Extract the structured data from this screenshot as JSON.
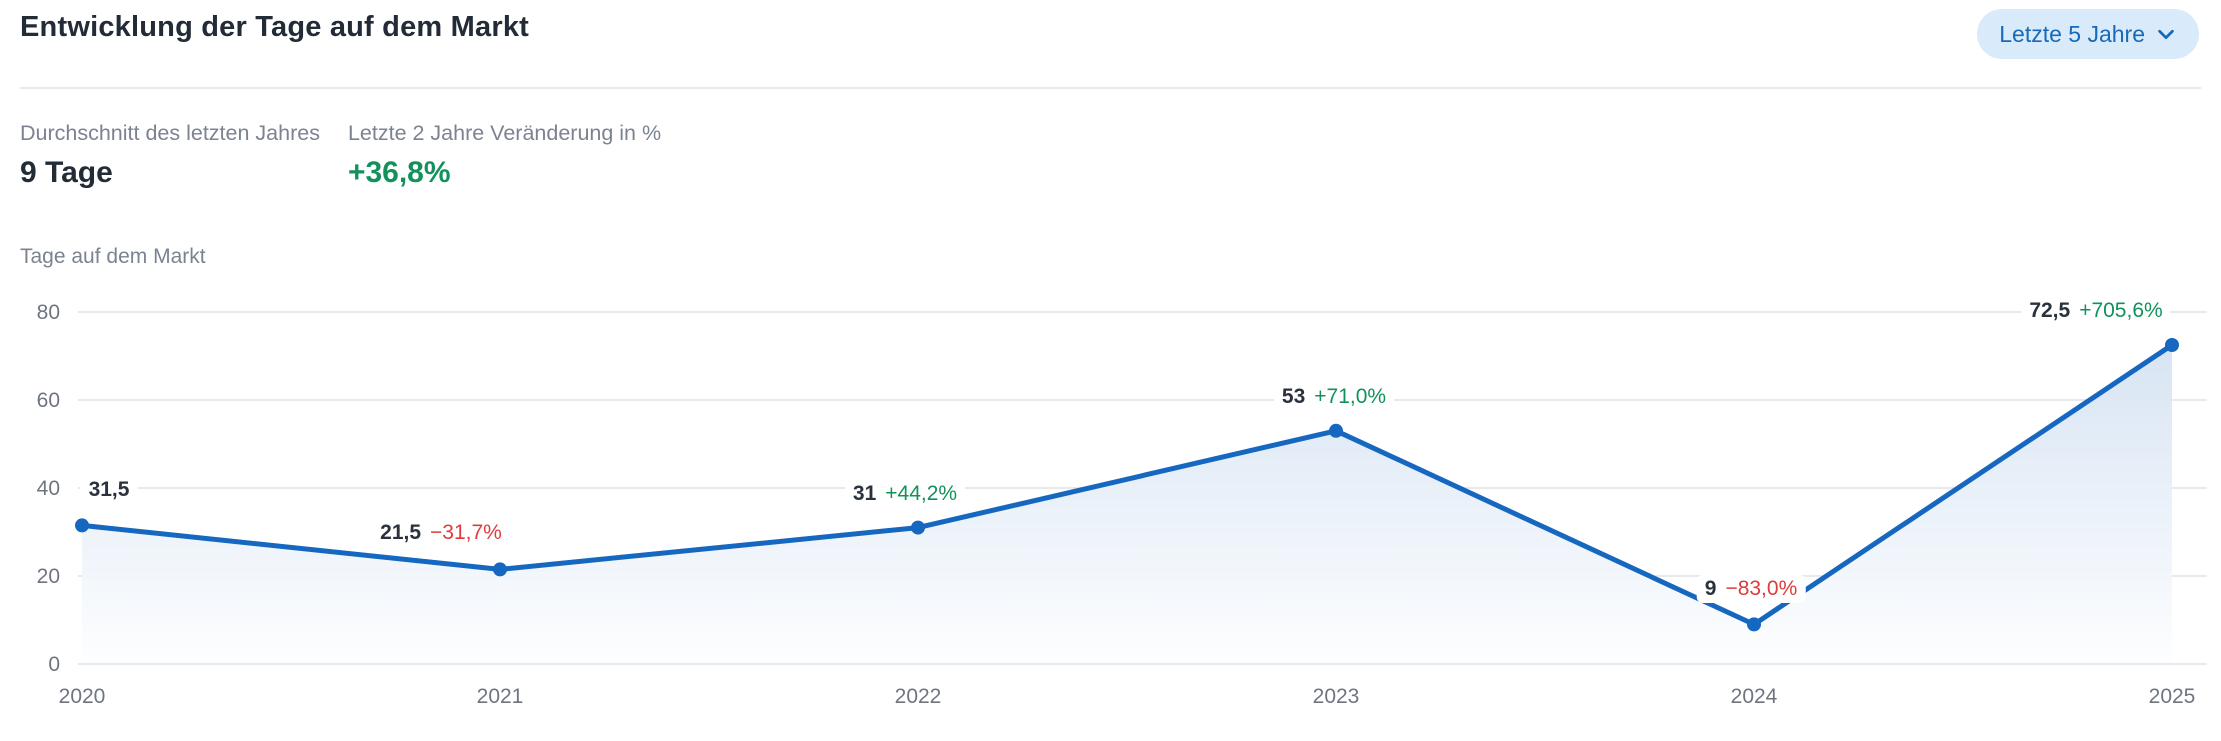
{
  "header": {
    "title": "Entwicklung der Tage auf dem Markt",
    "range_selector": {
      "label": "Letzte 5 Jahre",
      "icon": "chevron-down-icon"
    }
  },
  "stats": [
    {
      "label": "Durchschnitt des letzten Jahres",
      "value": "9 Tage",
      "color": "dark"
    },
    {
      "label": "Letzte 2 Jahre Veränderung in %",
      "value": "+36,8%",
      "color": "green"
    }
  ],
  "chart_data": {
    "type": "line",
    "ylabel": "Tage auf dem Markt",
    "xlabel": "",
    "x": [
      2020,
      2021,
      2022,
      2023,
      2024,
      2025
    ],
    "values": [
      31.5,
      21.5,
      31,
      53,
      9,
      72.5
    ],
    "point_labels": [
      {
        "value": "31,5",
        "change": "",
        "direction": "none"
      },
      {
        "value": "21,5",
        "change": "−31,7%",
        "direction": "down"
      },
      {
        "value": "31",
        "change": "+44,2%",
        "direction": "up"
      },
      {
        "value": "53",
        "change": "+71,0%",
        "direction": "up"
      },
      {
        "value": "9",
        "change": "−83,0%",
        "direction": "down"
      },
      {
        "value": "72,5",
        "change": "+705,6%",
        "direction": "up"
      }
    ],
    "yticks": [
      0,
      20,
      40,
      60,
      80
    ],
    "ylim": [
      0,
      80
    ],
    "grid": true,
    "legend": "none",
    "colors": {
      "line": "#1667c0",
      "area_top": "#d8e4f3",
      "area_bottom": "#fdfeff",
      "positive": "#12925a",
      "negative": "#dd3c3c",
      "gridline": "#e7e9ed",
      "tick_text": "#6e7580",
      "accent_pill_bg": "#d9eafa",
      "accent_pill_text": "#176ab8"
    }
  }
}
